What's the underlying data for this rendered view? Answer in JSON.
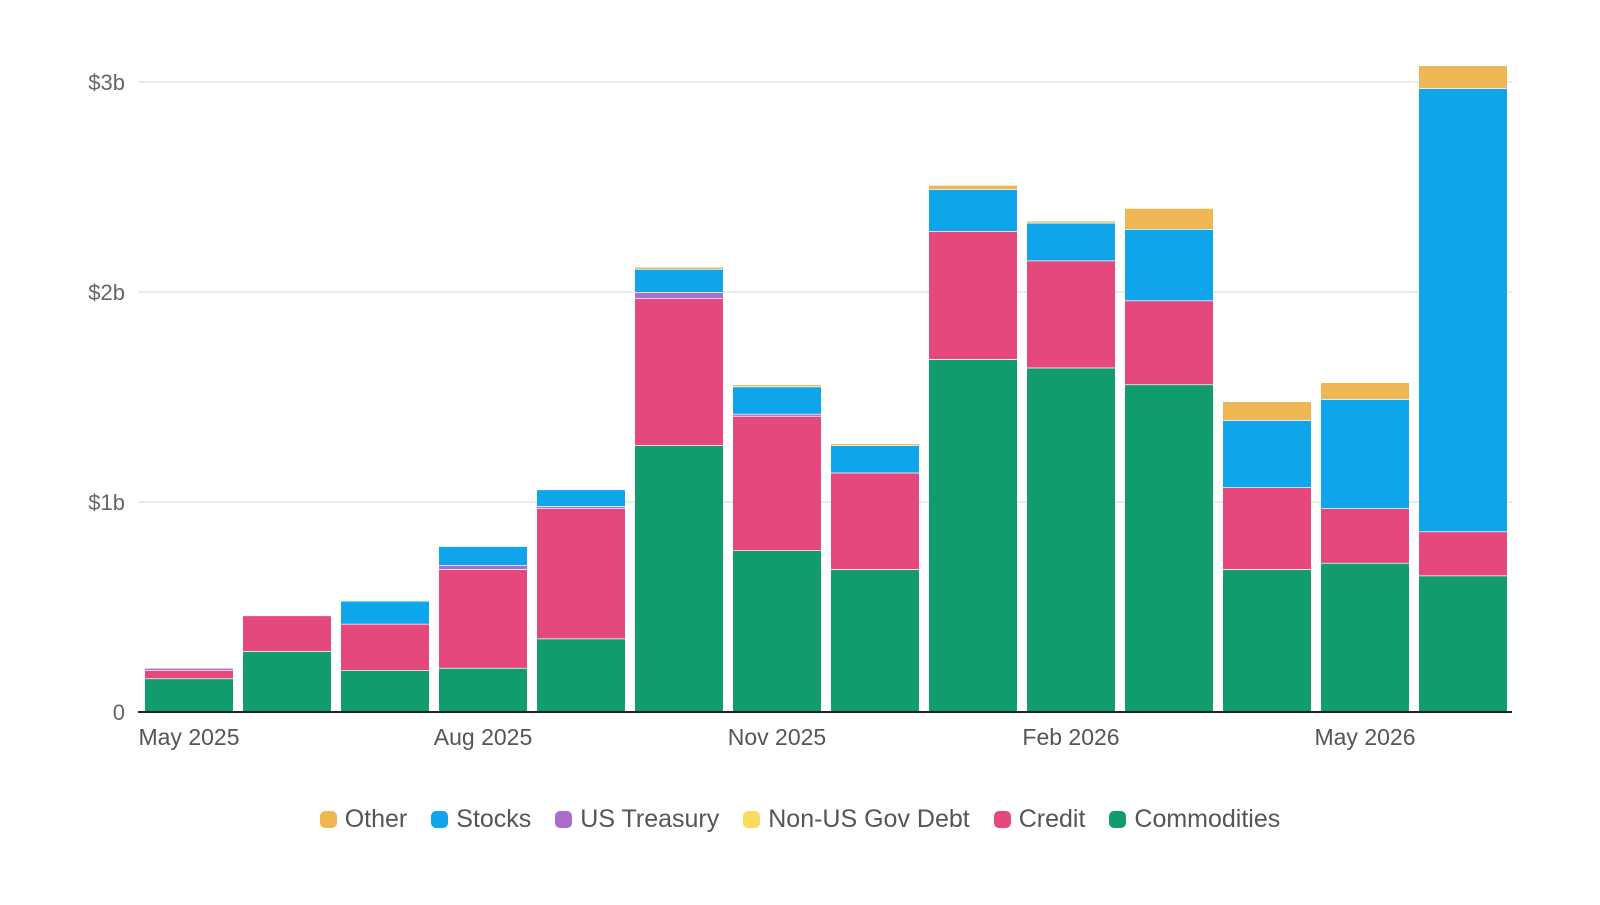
{
  "chart_data": {
    "type": "bar",
    "stacked": true,
    "title": "",
    "xlabel": "",
    "ylabel": "",
    "categories": [
      "May 2025",
      "Jun 2025",
      "Jul 2025",
      "Aug 2025",
      "Sep 2025",
      "Oct 2025",
      "Nov 2025",
      "Dec 2025",
      "Jan 2026",
      "Feb 2026",
      "Mar 2026",
      "Apr 2026",
      "May 2026",
      "Jun 2026"
    ],
    "x_tick_labels": [
      {
        "category": "May 2025",
        "label": "May 2025"
      },
      {
        "category": "Aug 2025",
        "label": "Aug 2025"
      },
      {
        "category": "Nov 2025",
        "label": "Nov 2025"
      },
      {
        "category": "Feb 2026",
        "label": "Feb 2026"
      },
      {
        "category": "May 2026",
        "label": "May 2026"
      }
    ],
    "y_ticks": [
      {
        "value": 0,
        "label": "0"
      },
      {
        "value": 1,
        "label": "$1b"
      },
      {
        "value": 2,
        "label": "$2b"
      },
      {
        "value": 3,
        "label": "$3b"
      }
    ],
    "ylim": [
      0,
      3.1
    ],
    "grid": true,
    "legend_position": "bottom-center",
    "series": [
      {
        "name": "Commodities",
        "color": "#139c6b",
        "values": [
          0.16,
          0.29,
          0.2,
          0.21,
          0.35,
          1.27,
          0.77,
          0.68,
          1.68,
          1.64,
          1.56,
          0.68,
          0.71,
          0.65
        ]
      },
      {
        "name": "Credit",
        "color": "#e5497c",
        "values": [
          0.04,
          0.17,
          0.22,
          0.47,
          0.62,
          0.7,
          0.64,
          0.46,
          0.61,
          0.51,
          0.4,
          0.39,
          0.26,
          0.21
        ]
      },
      {
        "name": "Non-US Gov Debt",
        "color": "#f9dc5c",
        "values": [
          0,
          0,
          0,
          0,
          0,
          0,
          0,
          0,
          0,
          0,
          0,
          0,
          0,
          0
        ]
      },
      {
        "name": "US Treasury",
        "color": "#ab6ccb",
        "values": [
          0.01,
          0,
          0,
          0.02,
          0.01,
          0.03,
          0.01,
          0,
          0,
          0,
          0,
          0,
          0,
          0
        ]
      },
      {
        "name": "Stocks",
        "color": "#0ea5eb",
        "values": [
          0,
          0,
          0.11,
          0.09,
          0.08,
          0.11,
          0.13,
          0.13,
          0.2,
          0.18,
          0.34,
          0.32,
          0.52,
          2.11
        ]
      },
      {
        "name": "Other",
        "color": "#eeb753",
        "values": [
          0,
          0,
          0,
          0,
          0,
          0.01,
          0.01,
          0.01,
          0.02,
          0.01,
          0.1,
          0.09,
          0.08,
          0.11
        ]
      }
    ],
    "legend_order": [
      "Other",
      "Stocks",
      "US Treasury",
      "Non-US Gov Debt",
      "Credit",
      "Commodities"
    ]
  }
}
